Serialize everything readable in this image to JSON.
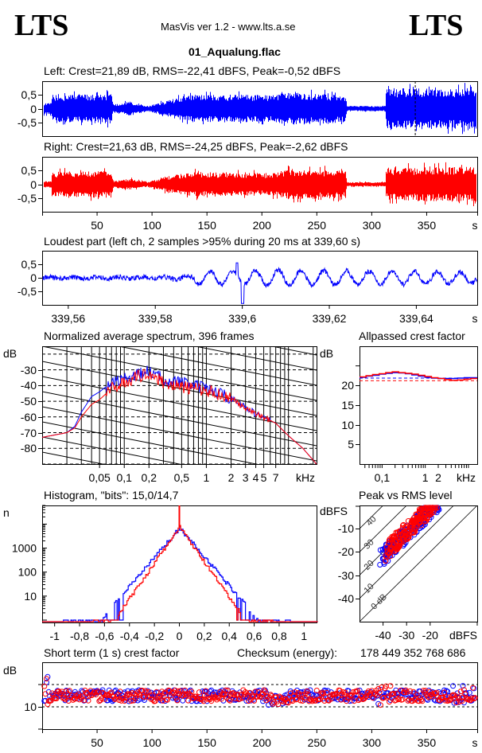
{
  "header": {
    "logo_left": "LTS",
    "logo_right": "LTS",
    "app_title": "MasVis ver 1.2 - www.lts.a.se",
    "file_name": "01_Aqualung.flac"
  },
  "colors": {
    "left": "#0000ff",
    "right": "#ff0000"
  },
  "chart_data": [
    {
      "id": "left-waveform",
      "type": "line",
      "title": "Left: Crest=21,89 dB, RMS=-22,41 dBFS, Peak=-0,52 dBFS",
      "ylabel_ticks": [
        "0,5",
        "0",
        "-0,5"
      ],
      "y_tick_values": [
        0.5,
        0,
        -0.5
      ],
      "ylim": [
        -1,
        1
      ],
      "xlim": [
        0,
        396
      ],
      "marker_x": 339.6,
      "envelope": [
        [
          0,
          0.2
        ],
        [
          8,
          0.2
        ],
        [
          9,
          0.5
        ],
        [
          63,
          0.55
        ],
        [
          64,
          0.15
        ],
        [
          80,
          0.25
        ],
        [
          96,
          0.1
        ],
        [
          115,
          0.3
        ],
        [
          135,
          0.5
        ],
        [
          208,
          0.5
        ],
        [
          225,
          0.6
        ],
        [
          276,
          0.5
        ],
        [
          277,
          0.1
        ],
        [
          312,
          0.1
        ],
        [
          313,
          0.75
        ],
        [
          396,
          0.75
        ]
      ]
    },
    {
      "id": "right-waveform",
      "type": "line",
      "title": "Right: Crest=21,63 dB, RMS=-24,25 dBFS, Peak=-2,62 dBFS",
      "ylabel_ticks": [
        "0,5",
        "0",
        "-0,5"
      ],
      "y_tick_values": [
        0.5,
        0,
        -0.5
      ],
      "ylim": [
        -1,
        1
      ],
      "xlim": [
        0,
        396
      ],
      "x_ticks": [
        50,
        100,
        150,
        200,
        250,
        300,
        350
      ],
      "x_tick_labels": [
        "50",
        "100",
        "150",
        "200",
        "250",
        "300",
        "350",
        "s"
      ],
      "envelope": [
        [
          0,
          0.12
        ],
        [
          8,
          0.12
        ],
        [
          9,
          0.45
        ],
        [
          63,
          0.5
        ],
        [
          64,
          0.12
        ],
        [
          80,
          0.2
        ],
        [
          96,
          0.08
        ],
        [
          115,
          0.3
        ],
        [
          135,
          0.45
        ],
        [
          208,
          0.4
        ],
        [
          225,
          0.55
        ],
        [
          276,
          0.5
        ],
        [
          277,
          0.08
        ],
        [
          312,
          0.08
        ],
        [
          313,
          0.6
        ],
        [
          396,
          0.65
        ]
      ]
    },
    {
      "id": "loudest-part",
      "type": "line",
      "title": "Loudest part (left  ch, 2 samples >95% during 20 ms at 339,60 s)",
      "ylabel_ticks": [
        "0,5",
        "0",
        "-0,5"
      ],
      "y_tick_values": [
        0.5,
        0,
        -0.5
      ],
      "ylim": [
        -1,
        1
      ],
      "xlim": [
        339.554,
        339.654
      ],
      "x_ticks": [
        339.56,
        339.58,
        339.6,
        339.62,
        339.64
      ],
      "x_tick_labels": [
        "339,56",
        "339,58",
        "339,6",
        "339,62",
        "339,64",
        "s"
      ]
    },
    {
      "id": "average-spectrum",
      "type": "line",
      "title": "Normalized average spectrum, 396 frames",
      "ylabel": "dB",
      "y_ticks": [
        -30,
        -40,
        -50,
        -60,
        -70,
        -80
      ],
      "ylim": [
        -90,
        -15
      ],
      "x_unit": "kHz",
      "x_tick_labels": [
        "0,05",
        "0,1",
        "0,2",
        "0,5",
        "1",
        "2",
        "3",
        "4",
        "5",
        "7",
        "kHz"
      ],
      "x_tick_values": [
        0.05,
        0.1,
        0.2,
        0.5,
        1,
        2,
        3,
        4,
        5,
        7
      ],
      "xlim_khz": [
        0.01,
        22
      ],
      "series": [
        {
          "name": "left",
          "points": [
            [
              0.01,
              -73
            ],
            [
              0.02,
              -70
            ],
            [
              0.025,
              -66
            ],
            [
              0.03,
              -57
            ],
            [
              0.04,
              -47
            ],
            [
              0.05,
              -44
            ],
            [
              0.07,
              -38
            ],
            [
              0.1,
              -36
            ],
            [
              0.15,
              -33
            ],
            [
              0.2,
              -31
            ],
            [
              0.3,
              -36
            ],
            [
              0.5,
              -38
            ],
            [
              1,
              -42
            ],
            [
              2,
              -48
            ],
            [
              3,
              -54
            ],
            [
              4,
              -58
            ],
            [
              5,
              -60
            ],
            [
              7,
              -64
            ],
            [
              10,
              -72
            ],
            [
              15,
              -80
            ],
            [
              22,
              -90
            ]
          ]
        },
        {
          "name": "right",
          "points": [
            [
              0.01,
              -73
            ],
            [
              0.02,
              -70
            ],
            [
              0.025,
              -67
            ],
            [
              0.03,
              -60
            ],
            [
              0.04,
              -52
            ],
            [
              0.05,
              -49
            ],
            [
              0.07,
              -42
            ],
            [
              0.1,
              -38
            ],
            [
              0.15,
              -34
            ],
            [
              0.2,
              -32
            ],
            [
              0.3,
              -38
            ],
            [
              0.5,
              -41
            ],
            [
              1,
              -43
            ],
            [
              2,
              -48
            ],
            [
              3,
              -55
            ],
            [
              4,
              -58
            ],
            [
              5,
              -60
            ],
            [
              7,
              -64
            ],
            [
              10,
              -72
            ],
            [
              15,
              -80
            ],
            [
              22,
              -90
            ]
          ]
        }
      ]
    },
    {
      "id": "allpassed-crest-factor",
      "type": "line",
      "title": "Allpassed crest factor",
      "ylabel": "dB",
      "y_ticks": [
        20,
        15,
        10,
        5
      ],
      "ylim": [
        0,
        30
      ],
      "x_tick_labels": [
        "0,1",
        "1",
        "2",
        "kHz"
      ],
      "x_tick_values": [
        0.1,
        1,
        2
      ],
      "xlim_khz": [
        0.03,
        16
      ],
      "dashed_levels": {
        "left": 21.89,
        "right": 21.63
      },
      "series": [
        {
          "name": "left",
          "values": [
            22.1,
            22.4,
            22.6,
            22.9,
            23.1,
            23.3,
            23.2,
            23.0,
            22.7,
            22.4,
            22.1,
            21.9,
            21.8,
            21.8,
            21.8,
            21.9,
            22.0,
            22.0
          ]
        },
        {
          "name": "right",
          "values": [
            22.2,
            22.5,
            22.8,
            23.0,
            23.3,
            23.5,
            23.3,
            23.1,
            22.9,
            22.6,
            22.3,
            22.0,
            21.8,
            21.5,
            21.3,
            21.4,
            21.6,
            21.8
          ]
        }
      ]
    },
    {
      "id": "histogram",
      "type": "line",
      "title": "Histogram, \"bits\": 15,0/14,7",
      "ylabel": "n",
      "y_ticks": [
        "1000",
        "100",
        "10"
      ],
      "y_tick_values": [
        1000,
        100,
        10
      ],
      "ylog": true,
      "ylim": [
        1,
        60000
      ],
      "xlim": [
        -1.1,
        1.1
      ],
      "x_tick_labels": [
        "-1",
        "-0,8",
        "-0,6",
        "-0,4",
        "-0,2",
        "0",
        "0,2",
        "0,4",
        "0,6",
        "0,8",
        "1"
      ],
      "x_tick_values": [
        -1,
        -0.8,
        -0.6,
        -0.4,
        -0.2,
        0,
        0.2,
        0.4,
        0.6,
        0.8,
        1
      ],
      "series": [
        {
          "name": "left",
          "peak": 7000,
          "decay": 14,
          "extent": [
            -0.95,
            0.88
          ]
        },
        {
          "name": "right",
          "peak": 7500,
          "decay": 17,
          "extent": [
            -0.7,
            0.75
          ]
        }
      ]
    },
    {
      "id": "peak-vs-rms",
      "type": "scatter",
      "title": "Peak vs RMS level",
      "ylabel": "dBFS",
      "xlabel": "dBFS",
      "y_ticks": [
        -10,
        -20,
        -30,
        -40
      ],
      "x_ticks": [
        -40,
        -30,
        -20
      ],
      "xlim": [
        -50,
        0
      ],
      "ylim": [
        -50,
        0
      ],
      "crest_lines": [
        "0 dB",
        "10",
        "20",
        "30",
        "40"
      ],
      "series": [
        {
          "name": "left",
          "rms_range": [
            -40,
            -17
          ],
          "crest_range": [
            14,
            22
          ]
        },
        {
          "name": "right",
          "rms_range": [
            -38,
            -18
          ],
          "crest_range": [
            15,
            23
          ]
        }
      ]
    },
    {
      "id": "short-term-crest-factor",
      "type": "scatter",
      "title": "Short term (1 s) crest factor",
      "checksum_label": "Checksum (energy):",
      "checksum_value": "178 449 352 768 686",
      "ylabel": "dB",
      "y_ticks": [
        "10"
      ],
      "y_tick_values": [
        10
      ],
      "dashed_levels": [
        10,
        20
      ],
      "ylim": [
        0,
        30
      ],
      "xlim": [
        0,
        396
      ],
      "x_ticks": [
        50,
        100,
        150,
        200,
        250,
        300,
        350
      ],
      "x_tick_labels": [
        "50",
        "100",
        "150",
        "200",
        "250",
        "300",
        "350",
        "s"
      ],
      "mean_crest_db": 15
    }
  ]
}
